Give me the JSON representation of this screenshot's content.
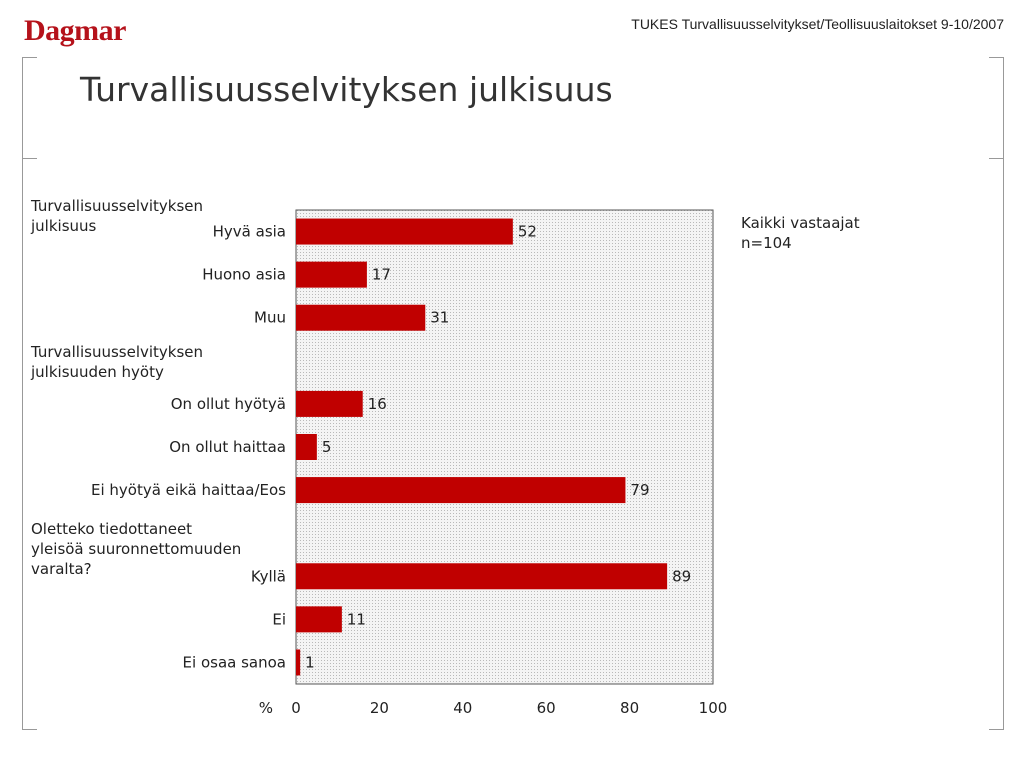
{
  "header": {
    "logo": "Dagmar",
    "source": "TUKES Turvallisuusselvitykset/Teollisuuslaitokset 9-10/2007"
  },
  "title": "Turvallisuusselvityksen julkisuus",
  "note": {
    "line1": "Kaikki vastaajat",
    "line2": "n=104"
  },
  "groups": [
    {
      "lines": [
        "Turvallisuusselvityksen",
        "julkisuus"
      ]
    },
    {
      "lines": [
        "Turvallisuusselvityksen",
        "julkisuuden hyöty"
      ]
    },
    {
      "lines": [
        "Oletteko tiedottaneet",
        "yleisöä suuronnettomuuden",
        "varalta?"
      ]
    }
  ],
  "colors": {
    "bar": "#c00000",
    "plot_bg": "#e9e9e9",
    "text": "#222222"
  },
  "chart_data": {
    "type": "bar",
    "orientation": "horizontal",
    "categories": [
      "Hyvä asia",
      "Huono asia",
      "Muu",
      "",
      "On ollut hyötyä",
      "On ollut haittaa",
      "Ei hyötyä eikä haittaa/Eos",
      "",
      "Kyllä",
      "Ei",
      "Ei osaa sanoa"
    ],
    "values": [
      52,
      17,
      31,
      null,
      16,
      5,
      79,
      null,
      89,
      11,
      1
    ],
    "data_labels": [
      "52",
      "17",
      "31",
      "",
      "16",
      "5",
      "79",
      "",
      "89",
      "11",
      "1"
    ],
    "xlabel": "%",
    "xlim": [
      0,
      100
    ],
    "xticks": [
      "0",
      "20",
      "40",
      "60",
      "80",
      "100"
    ],
    "grid": false
  }
}
